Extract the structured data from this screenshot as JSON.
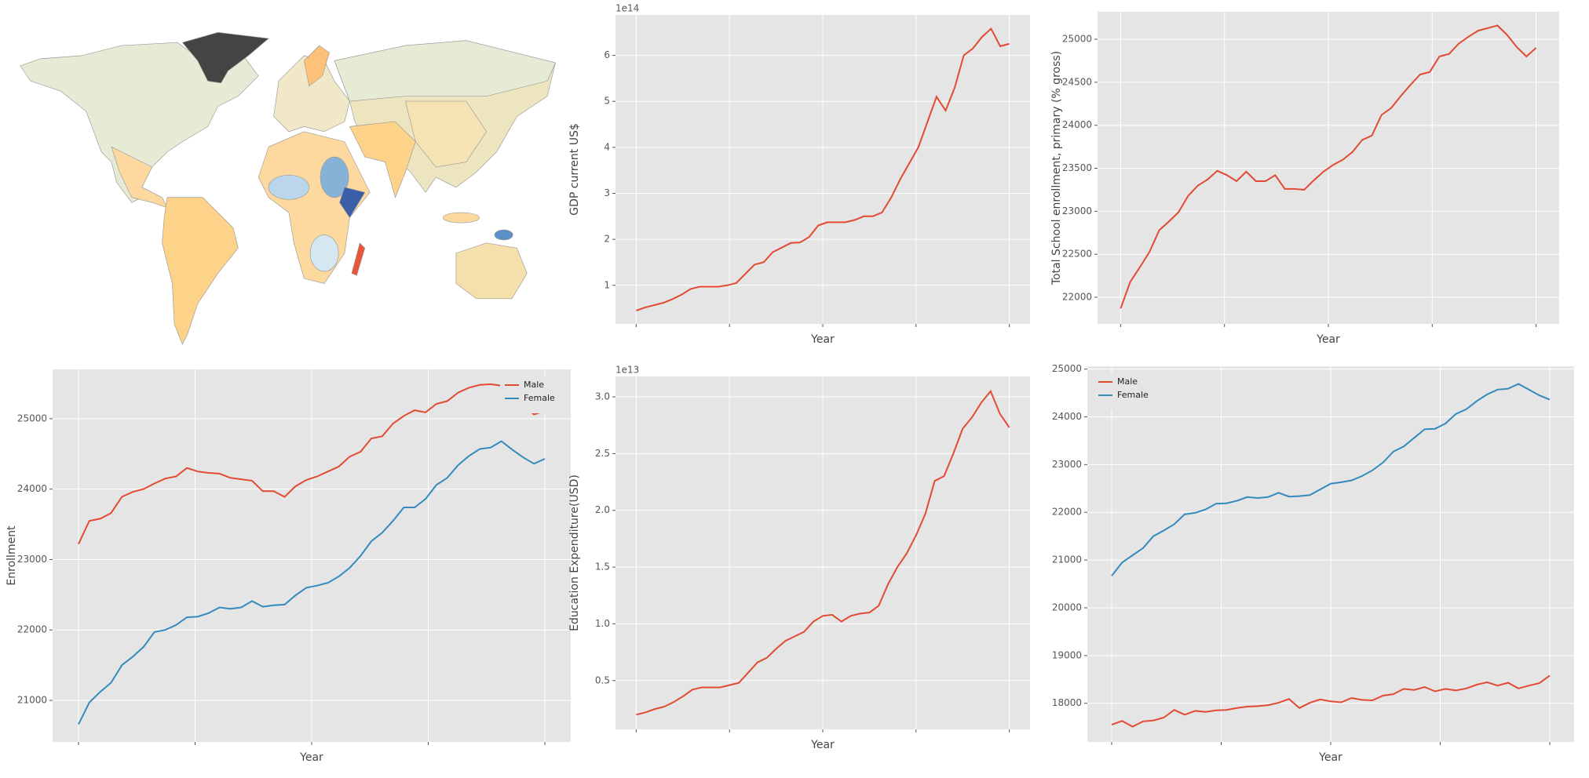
{
  "chart_data": [
    {
      "type": "line",
      "offset_label": "1e14",
      "y_label": "GDP current US$",
      "x_label": "Year",
      "grid": true,
      "color": "#e24a33",
      "values": [
        0.45,
        0.52,
        0.57,
        0.62,
        0.7,
        0.8,
        0.92,
        0.97,
        0.97,
        0.97,
        1.0,
        1.05,
        1.25,
        1.45,
        1.5,
        1.72,
        1.82,
        1.92,
        1.93,
        2.05,
        2.3,
        2.37,
        2.37,
        2.37,
        2.42,
        2.5,
        2.5,
        2.58,
        2.9,
        3.3,
        3.65,
        4.0,
        4.55,
        5.1,
        4.8,
        5.3,
        6.0,
        6.15,
        6.4,
        6.58,
        6.2,
        6.25
      ],
      "ylim": [
        0.16,
        6.88
      ],
      "yticks": [
        1,
        2,
        3,
        4,
        5,
        6
      ]
    },
    {
      "type": "line",
      "y_label": "Total School enrollment, primary (% gross)",
      "x_label": "Year",
      "grid": true,
      "color": "#e24a33",
      "values": [
        21870,
        22180,
        22350,
        22530,
        22780,
        22880,
        22990,
        23180,
        23300,
        23370,
        23470,
        23420,
        23350,
        23460,
        23350,
        23350,
        23420,
        23260,
        23260,
        23250,
        23360,
        23460,
        23540,
        23600,
        23690,
        23830,
        23880,
        24120,
        24200,
        24340,
        24470,
        24590,
        24620,
        24800,
        24830,
        24950,
        25030,
        25100,
        25130,
        25160,
        25050,
        24910,
        24800,
        24900
      ],
      "ylim": [
        21690,
        25320
      ],
      "yticks": [
        22000,
        22500,
        23000,
        23500,
        24000,
        24500,
        25000
      ]
    },
    {
      "type": "line",
      "y_label": "Enrollment",
      "x_label": "Year",
      "grid": true,
      "legend": "upper right",
      "series": [
        {
          "name": "Male",
          "color": "#e24a33",
          "values": [
            23220,
            23550,
            23580,
            23660,
            23890,
            23960,
            24000,
            24080,
            24150,
            24180,
            24300,
            24250,
            24230,
            24220,
            24160,
            24140,
            24120,
            23970,
            23970,
            23890,
            24040,
            24130,
            24180,
            24250,
            24320,
            24460,
            24530,
            24720,
            24750,
            24930,
            25040,
            25120,
            25090,
            25210,
            25250,
            25370,
            25440,
            25480,
            25490,
            25470,
            25290,
            25190,
            25060,
            25110
          ]
        },
        {
          "name": "Female",
          "color": "#348abd",
          "values": [
            20660,
            20970,
            21120,
            21250,
            21500,
            21620,
            21760,
            21970,
            22000,
            22070,
            22180,
            22190,
            22240,
            22320,
            22300,
            22320,
            22410,
            22330,
            22350,
            22360,
            22490,
            22600,
            22630,
            22670,
            22760,
            22880,
            23050,
            23260,
            23380,
            23550,
            23740,
            23740,
            23860,
            24060,
            24160,
            24340,
            24470,
            24570,
            24590,
            24680,
            24560,
            24450,
            24360,
            24430
          ]
        }
      ],
      "ylim": [
        20410,
        25700
      ],
      "yticks": [
        21000,
        22000,
        23000,
        24000,
        25000
      ]
    },
    {
      "type": "line",
      "offset_label": "1e13",
      "y_label": "Education Expenditure(USD)",
      "x_label": "Year",
      "grid": true,
      "color": "#e24a33",
      "values": [
        0.2,
        0.22,
        0.25,
        0.27,
        0.31,
        0.36,
        0.42,
        0.44,
        0.44,
        0.44,
        0.46,
        0.48,
        0.57,
        0.66,
        0.7,
        0.78,
        0.85,
        0.89,
        0.93,
        1.02,
        1.07,
        1.08,
        1.02,
        1.07,
        1.09,
        1.1,
        1.16,
        1.35,
        1.5,
        1.62,
        1.78,
        1.97,
        2.26,
        2.3,
        2.5,
        2.72,
        2.82,
        2.95,
        3.05,
        2.85,
        2.73
      ],
      "ylim": [
        0.07,
        3.18
      ],
      "yticks": [
        0.5,
        {
          "value": 1,
          "label": "1.0"
        },
        1.5,
        {
          "value": 2,
          "label": "2.0"
        },
        2.5,
        {
          "value": 3,
          "label": "3.0"
        }
      ]
    },
    {
      "type": "line",
      "x_label": "Year",
      "grid": true,
      "legend": "upper left",
      "series": [
        {
          "name": "Male",
          "color": "#e24a33",
          "values": [
            17550,
            17630,
            17510,
            17620,
            17640,
            17700,
            17860,
            17760,
            17840,
            17820,
            17850,
            17860,
            17900,
            17930,
            17940,
            17960,
            18010,
            18090,
            17900,
            18010,
            18080,
            18040,
            18020,
            18110,
            18070,
            18060,
            18160,
            18190,
            18300,
            18280,
            18340,
            18250,
            18300,
            18270,
            18310,
            18390,
            18440,
            18370,
            18430,
            18310,
            18370,
            18420,
            18580
          ]
        },
        {
          "name": "Female",
          "color": "#348abd",
          "values": [
            20670,
            20950,
            21100,
            21250,
            21500,
            21620,
            21750,
            21960,
            21990,
            22060,
            22180,
            22190,
            22240,
            22320,
            22300,
            22320,
            22410,
            22330,
            22340,
            22360,
            22480,
            22600,
            22630,
            22670,
            22760,
            22880,
            23040,
            23270,
            23380,
            23560,
            23740,
            23750,
            23860,
            24060,
            24160,
            24330,
            24470,
            24570,
            24590,
            24690,
            24570,
            24450,
            24360
          ]
        }
      ],
      "ylim": [
        17190,
        25060
      ],
      "yticks": [
        18000,
        19000,
        20000,
        21000,
        22000,
        23000,
        24000,
        25000
      ]
    }
  ]
}
